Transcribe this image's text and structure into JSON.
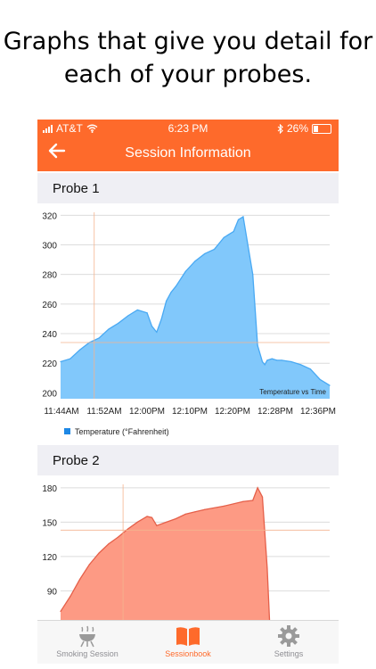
{
  "headline": {
    "line1": "Graphs that give you detail for",
    "line2": "each of your probes."
  },
  "status_bar": {
    "carrier": "AT&T",
    "time": "6:23 PM",
    "battery": "26%"
  },
  "nav": {
    "back_icon": "back-arrow-icon",
    "title": "Session Information"
  },
  "colors": {
    "accent": "#fe6a2b",
    "probe1_fill": "#81c8fb",
    "probe1_line": "#49a9f3",
    "probe2_fill": "#fd9a84",
    "probe2_line": "#e5604a",
    "legend": "#1e88e5"
  },
  "sections": [
    {
      "label": "Probe 1"
    },
    {
      "label": "Probe 2"
    }
  ],
  "chart_data": [
    {
      "type": "area",
      "title": "",
      "annotation": "Temperature vs Time",
      "xlabel": "",
      "ylabel": "",
      "x_tick_labels": [
        "11:44AM",
        "11:52AM",
        "12:00PM",
        "12:10PM",
        "12:20PM",
        "12:28PM",
        "12:36PM"
      ],
      "x_range_minutes": [
        0,
        56
      ],
      "ylim": [
        196,
        322
      ],
      "y_ticks": [
        200,
        220,
        240,
        260,
        280,
        300,
        320
      ],
      "grid": true,
      "legend": {
        "label": "Temperature (°Fahrenheit)",
        "placement": "bottom-left"
      },
      "crosshair": {
        "x_minutes": 7,
        "y": 234
      },
      "series": [
        {
          "name": "Temperature (°Fahrenheit)",
          "x": [
            0,
            2,
            4,
            6,
            8,
            10,
            12,
            14,
            16,
            18,
            19,
            20,
            21,
            22,
            23,
            24,
            26,
            28,
            30,
            32,
            34,
            36,
            37,
            38,
            40,
            41,
            42,
            42.5,
            43,
            44,
            45,
            46,
            48,
            50,
            52,
            54,
            56
          ],
          "values": [
            221,
            223,
            229,
            234,
            237,
            243,
            247,
            252,
            256,
            254,
            245,
            241,
            250,
            262,
            268,
            272,
            282,
            289,
            294,
            297,
            305,
            309,
            317,
            319,
            280,
            232,
            221,
            219,
            222,
            223,
            222,
            222,
            221,
            219,
            216,
            209,
            205
          ]
        }
      ]
    },
    {
      "type": "area",
      "title": "",
      "xlabel": "",
      "ylabel": "",
      "x_range_minutes": [
        0,
        56
      ],
      "ylim": [
        63,
        183
      ],
      "y_ticks": [
        90,
        120,
        150,
        180
      ],
      "grid": true,
      "crosshair": {
        "x_minutes": 13,
        "y": 143
      },
      "series": [
        {
          "name": "Temperature (°Fahrenheit)",
          "x": [
            0,
            2,
            4,
            6,
            8,
            10,
            12,
            14,
            16,
            18,
            19,
            20,
            22,
            24,
            26,
            28,
            30,
            34,
            38,
            40,
            41,
            42,
            43,
            43.5
          ],
          "values": [
            72,
            85,
            100,
            113,
            123,
            131,
            137,
            144,
            150,
            155,
            154,
            147,
            150,
            153,
            157,
            159,
            161,
            164,
            168,
            169,
            180,
            172,
            110,
            60
          ]
        }
      ]
    }
  ],
  "tabs": [
    {
      "label": "Smoking Session",
      "icon": "grill-icon",
      "active": false
    },
    {
      "label": "Sessionbook",
      "icon": "book-icon",
      "active": true
    },
    {
      "label": "Settings",
      "icon": "gear-icon",
      "active": false
    }
  ]
}
